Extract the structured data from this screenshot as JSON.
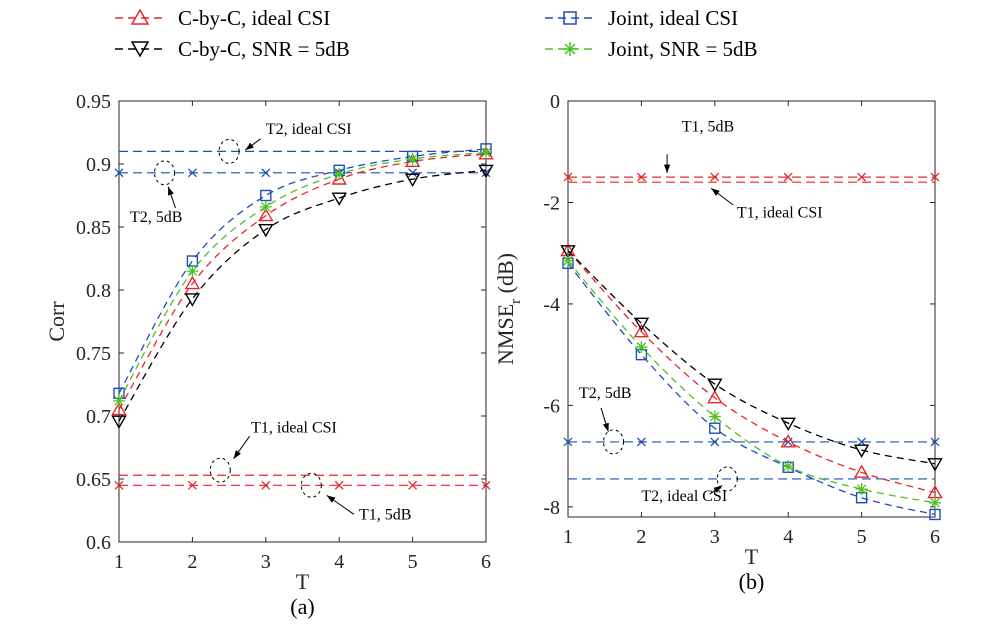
{
  "legend": [
    {
      "name": "C-by-C, ideal CSI",
      "color": "#e8262a",
      "marker": "triangle-up"
    },
    {
      "name": "Joint, ideal CSI",
      "color": "#1f4fb5",
      "marker": "square"
    },
    {
      "name": "C-by-C, SNR = 5dB",
      "color": "#000000",
      "marker": "triangle-down"
    },
    {
      "name": "Joint, SNR = 5dB",
      "color": "#4fc125",
      "marker": "asterisk"
    }
  ],
  "chart_data": [
    {
      "type": "line",
      "caption": "(a)",
      "xlabel": "T",
      "ylabel": "Corr",
      "x": [
        1,
        2,
        3,
        4,
        5,
        6
      ],
      "xlim": [
        1,
        6
      ],
      "ylim": [
        0.6,
        0.95
      ],
      "xticks": [
        "1",
        "2",
        "3",
        "4",
        "5",
        "6"
      ],
      "yticks": [
        "0.6",
        "0.65",
        "0.7",
        "0.75",
        "0.8",
        "0.85",
        "0.9",
        "0.95"
      ],
      "grid": false,
      "series": [
        {
          "name": "C-by-C, ideal CSI",
          "color": "#e8262a",
          "marker": "triangle-up",
          "values": [
            0.705,
            0.805,
            0.859,
            0.888,
            0.902,
            0.908
          ]
        },
        {
          "name": "Joint, ideal CSI",
          "color": "#1f4fb5",
          "marker": "square",
          "values": [
            0.718,
            0.823,
            0.875,
            0.895,
            0.906,
            0.912
          ]
        },
        {
          "name": "C-by-C, SNR = 5dB",
          "color": "#000000",
          "marker": "triangle-down",
          "values": [
            0.696,
            0.793,
            0.848,
            0.873,
            0.888,
            0.895
          ]
        },
        {
          "name": "Joint, SNR = 5dB",
          "color": "#4fc125",
          "marker": "asterisk",
          "values": [
            0.712,
            0.815,
            0.866,
            0.892,
            0.904,
            0.909
          ]
        }
      ],
      "reference_lines": [
        {
          "y": 0.91,
          "color": "#1f4fb5",
          "marker": "none"
        },
        {
          "y": 0.893,
          "color": "#1f4fb5",
          "marker": "x"
        },
        {
          "y": 0.653,
          "color": "#e8262a",
          "marker": "none"
        },
        {
          "y": 0.645,
          "color": "#e8262a",
          "marker": "x"
        }
      ],
      "annotations": [
        {
          "text": "T2, ideal CSI",
          "circle": [
            2.5,
            0.91
          ],
          "label": [
            3.0,
            0.924
          ],
          "arrow_from": [
            2.93,
            0.92
          ],
          "arrow_to": [
            2.72,
            0.911
          ]
        },
        {
          "text": "T2, 5dB",
          "circle": [
            1.62,
            0.893
          ],
          "label": [
            1.15,
            0.854
          ],
          "arrow_from": [
            1.77,
            0.865
          ],
          "arrow_to": [
            1.67,
            0.882
          ]
        },
        {
          "text": "T1, ideal CSI",
          "circle": [
            2.38,
            0.657
          ],
          "label": [
            2.8,
            0.687
          ],
          "arrow_from": [
            2.78,
            0.684
          ],
          "arrow_to": [
            2.56,
            0.666
          ]
        },
        {
          "text": "T1, 5dB",
          "circle": [
            3.62,
            0.645
          ],
          "label": [
            4.27,
            0.618
          ],
          "arrow_from": [
            4.2,
            0.622
          ],
          "arrow_to": [
            3.83,
            0.637
          ]
        }
      ]
    },
    {
      "type": "line",
      "caption": "(b)",
      "xlabel": "T",
      "ylabel": "NMSE",
      "ylabel_sub": "r",
      "ylabel_unit": " (dB)",
      "x": [
        1,
        2,
        3,
        4,
        5,
        6
      ],
      "xlim": [
        1,
        6
      ],
      "ylim": [
        -8.2,
        0
      ],
      "xticks": [
        "1",
        "2",
        "3",
        "4",
        "5",
        "6"
      ],
      "yticks": [
        "0",
        "-2",
        "-4",
        "-6",
        "-8"
      ],
      "ytick_values": [
        0,
        -2,
        -4,
        -6,
        -8
      ],
      "grid": false,
      "series": [
        {
          "name": "C-by-C, ideal CSI",
          "color": "#e8262a",
          "marker": "triangle-up",
          "values": [
            -2.95,
            -4.55,
            -5.85,
            -6.72,
            -7.32,
            -7.72
          ]
        },
        {
          "name": "Joint, ideal CSI",
          "color": "#1f4fb5",
          "marker": "square",
          "values": [
            -3.2,
            -5.0,
            -6.45,
            -7.22,
            -7.82,
            -8.15
          ]
        },
        {
          "name": "C-by-C, SNR = 5dB",
          "color": "#000000",
          "marker": "triangle-down",
          "values": [
            -2.95,
            -4.38,
            -5.58,
            -6.35,
            -6.88,
            -7.15
          ]
        },
        {
          "name": "Joint, SNR = 5dB",
          "color": "#4fc125",
          "marker": "asterisk",
          "values": [
            -3.15,
            -4.85,
            -6.22,
            -7.2,
            -7.65,
            -7.92
          ]
        }
      ],
      "reference_lines": [
        {
          "y": -1.5,
          "color": "#e8262a",
          "marker": "x"
        },
        {
          "y": -1.6,
          "color": "#e8262a",
          "marker": "none"
        },
        {
          "y": -6.72,
          "color": "#1f4fb5",
          "marker": "x"
        },
        {
          "y": -7.45,
          "color": "#1f4fb5",
          "marker": "none"
        }
      ],
      "annotations": [
        {
          "text": "T1, 5dB",
          "circle": null,
          "label": [
            2.55,
            -0.6
          ],
          "arrow_from": [
            2.35,
            -1.05
          ],
          "arrow_to": [
            2.35,
            -1.42
          ]
        },
        {
          "text": "T1, ideal CSI",
          "circle": null,
          "label": [
            3.3,
            -2.3
          ],
          "arrow_from": [
            3.25,
            -2.05
          ],
          "arrow_to": [
            2.95,
            -1.72
          ]
        },
        {
          "text": "T2, 5dB",
          "circle": [
            1.62,
            -6.72
          ],
          "label": [
            1.15,
            -5.85
          ],
          "arrow_from": [
            1.45,
            -6.05
          ],
          "arrow_to": [
            1.55,
            -6.52
          ]
        },
        {
          "text": "T2, ideal CSI",
          "circle": [
            3.17,
            -7.45
          ],
          "label": [
            2.0,
            -7.88
          ],
          "arrow_from": [
            2.93,
            -7.75
          ],
          "arrow_to": [
            3.1,
            -7.58
          ]
        }
      ]
    }
  ]
}
